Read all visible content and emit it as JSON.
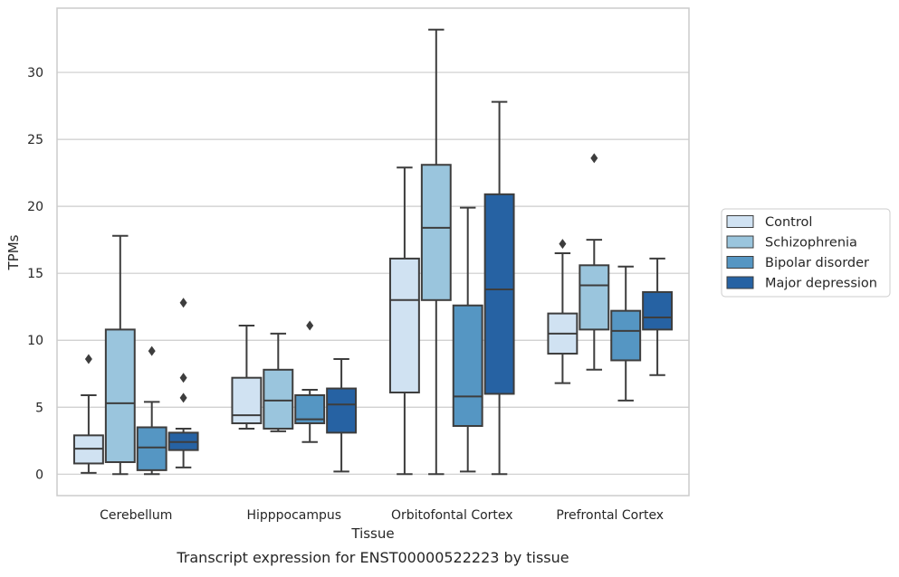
{
  "chart_data": {
    "type": "boxplot",
    "title": "Transcript expression for ENST00000522223 by tissue",
    "xlabel": "Tissue",
    "ylabel": "TPMs",
    "ylim": [
      -1.6,
      34.8
    ],
    "yticks": [
      0,
      5,
      10,
      15,
      20,
      25,
      30
    ],
    "grid": true,
    "legend_position": "right",
    "categories": [
      "Cerebellum",
      "Hipppocampus",
      "Orbitofontal Cortex",
      "Prefrontal Cortex"
    ],
    "series": [
      {
        "name": "Control",
        "color": "#d0e2f2",
        "boxes": [
          {
            "whisker_low": 0.1,
            "q1": 0.8,
            "median": 1.9,
            "q3": 2.9,
            "whisker_high": 5.9,
            "outliers": [
              8.6
            ]
          },
          {
            "whisker_low": 3.4,
            "q1": 3.8,
            "median": 4.4,
            "q3": 7.2,
            "whisker_high": 11.1,
            "outliers": []
          },
          {
            "whisker_low": 0.0,
            "q1": 6.1,
            "median": 13.0,
            "q3": 16.1,
            "whisker_high": 22.9,
            "outliers": []
          },
          {
            "whisker_low": 6.8,
            "q1": 9.0,
            "median": 10.5,
            "q3": 12.0,
            "whisker_high": 16.5,
            "outliers": [
              17.2
            ]
          }
        ]
      },
      {
        "name": "Schizophrenia",
        "color": "#9ac5dd",
        "boxes": [
          {
            "whisker_low": 0.0,
            "q1": 0.9,
            "median": 5.3,
            "q3": 10.8,
            "whisker_high": 17.8,
            "outliers": []
          },
          {
            "whisker_low": 3.2,
            "q1": 3.4,
            "median": 5.5,
            "q3": 7.8,
            "whisker_high": 10.5,
            "outliers": []
          },
          {
            "whisker_low": 0.0,
            "q1": 13.0,
            "median": 18.4,
            "q3": 23.1,
            "whisker_high": 33.2,
            "outliers": []
          },
          {
            "whisker_low": 7.8,
            "q1": 10.8,
            "median": 14.1,
            "q3": 15.6,
            "whisker_high": 17.5,
            "outliers": [
              23.6
            ]
          }
        ]
      },
      {
        "name": "Bipolar disorder",
        "color": "#5596c3",
        "boxes": [
          {
            "whisker_low": 0.0,
            "q1": 0.3,
            "median": 2.0,
            "q3": 3.5,
            "whisker_high": 5.4,
            "outliers": [
              9.2
            ]
          },
          {
            "whisker_low": 2.4,
            "q1": 3.8,
            "median": 4.1,
            "q3": 5.9,
            "whisker_high": 6.3,
            "outliers": [
              11.1
            ]
          },
          {
            "whisker_low": 0.2,
            "q1": 3.6,
            "median": 5.8,
            "q3": 12.6,
            "whisker_high": 19.9,
            "outliers": []
          },
          {
            "whisker_low": 5.5,
            "q1": 8.5,
            "median": 10.7,
            "q3": 12.2,
            "whisker_high": 15.5,
            "outliers": []
          }
        ]
      },
      {
        "name": "Major depression",
        "color": "#2662a3",
        "boxes": [
          {
            "whisker_low": 0.5,
            "q1": 1.8,
            "median": 2.4,
            "q3": 3.1,
            "whisker_high": 3.4,
            "outliers": [
              5.7,
              7.2,
              12.8
            ]
          },
          {
            "whisker_low": 0.2,
            "q1": 3.1,
            "median": 5.2,
            "q3": 6.4,
            "whisker_high": 8.6,
            "outliers": []
          },
          {
            "whisker_low": 0.0,
            "q1": 6.0,
            "median": 13.8,
            "q3": 20.9,
            "whisker_high": 27.8,
            "outliers": []
          },
          {
            "whisker_low": 7.4,
            "q1": 10.8,
            "median": 11.7,
            "q3": 13.6,
            "whisker_high": 16.1,
            "outliers": []
          }
        ]
      }
    ]
  }
}
